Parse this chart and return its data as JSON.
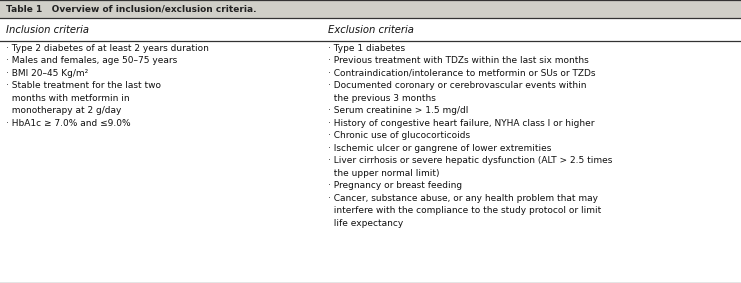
{
  "title": "Table 1   Overview of inclusion/exclusion criteria.",
  "col1_header": "Inclusion criteria",
  "col2_header": "Exclusion criteria",
  "col1_items": [
    "· Type 2 diabetes of at least 2 years duration",
    "· Males and females, age 50–75 years",
    "· BMI 20–45 Kg/m²",
    "· Stable treatment for the last two\n  months with metformin in\n  monotherapy at 2 g/day",
    "· HbA1c ≥ 7.0% and ≤9.0%"
  ],
  "col2_items": [
    "· Type 1 diabetes",
    "· Previous treatment with TDZs within the last six months",
    "· Contraindication/intolerance to metformin or SUs or TZDs",
    "· Documented coronary or cerebrovascular events within\n  the previous 3 months",
    "· Serum creatinine > 1.5 mg/dl",
    "· History of congestive heart failure, NYHA class I or higher",
    "· Chronic use of glucocorticoids",
    "· Ischemic ulcer or gangrene of lower extremities",
    "· Liver cirrhosis or severe hepatic dysfunction (ALT > 2.5 times\n  the upper normal limit)",
    "· Pregnancy or breast feeding",
    "· Cancer, substance abuse, or any health problem that may\n  interfere with the compliance to the study protocol or limit\n  life expectancy"
  ],
  "bg_color": "#ffffff",
  "title_bg_color": "#d0cfc8",
  "header_bg_color": "#ffffff",
  "line_color": "#333333",
  "text_color": "#111111",
  "title_text_color": "#222222",
  "font_size": 6.5,
  "header_font_size": 7.2,
  "title_font_size": 6.5,
  "col_split": 0.435,
  "fig_width": 7.41,
  "fig_height": 2.83,
  "dpi": 100
}
